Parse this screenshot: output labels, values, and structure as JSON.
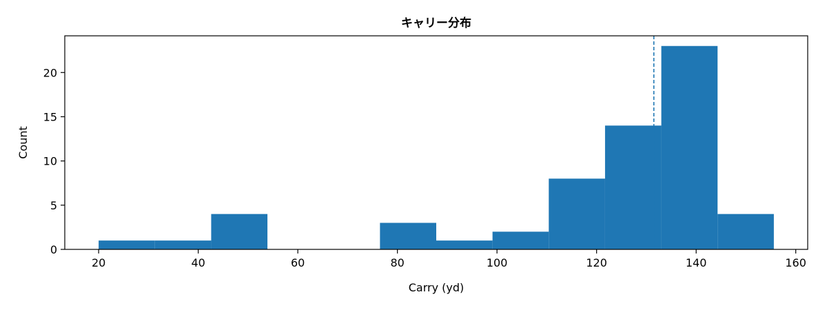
{
  "chart_data": {
    "type": "bar",
    "subtype": "histogram",
    "title": "キャリー分布",
    "xlabel": "Carry (yd)",
    "ylabel": "Count",
    "xlim": [
      13.2,
      162.4
    ],
    "ylim": [
      0,
      24.15
    ],
    "x_ticks": [
      20,
      40,
      60,
      80,
      100,
      120,
      140,
      160
    ],
    "y_ticks": [
      0,
      5,
      10,
      15,
      20
    ],
    "bins": [
      {
        "x0": 20.0,
        "x1": 31.3,
        "count": 1
      },
      {
        "x0": 31.3,
        "x1": 42.6,
        "count": 1
      },
      {
        "x0": 42.6,
        "x1": 53.9,
        "count": 4
      },
      {
        "x0": 53.9,
        "x1": 65.2,
        "count": 0
      },
      {
        "x0": 65.2,
        "x1": 76.5,
        "count": 0
      },
      {
        "x0": 76.5,
        "x1": 87.8,
        "count": 3
      },
      {
        "x0": 87.8,
        "x1": 99.1,
        "count": 1
      },
      {
        "x0": 99.1,
        "x1": 110.4,
        "count": 2
      },
      {
        "x0": 110.4,
        "x1": 121.7,
        "count": 8
      },
      {
        "x0": 121.7,
        "x1": 133.0,
        "count": 14
      },
      {
        "x0": 133.0,
        "x1": 144.3,
        "count": 23
      },
      {
        "x0": 144.3,
        "x1": 155.6,
        "count": 4
      }
    ],
    "reference_line": {
      "x": 131.5,
      "style": "dashed"
    },
    "bar_color": "#1f77b4",
    "ref_line_color": "#1f77b4",
    "grid": false,
    "legend": "none"
  }
}
